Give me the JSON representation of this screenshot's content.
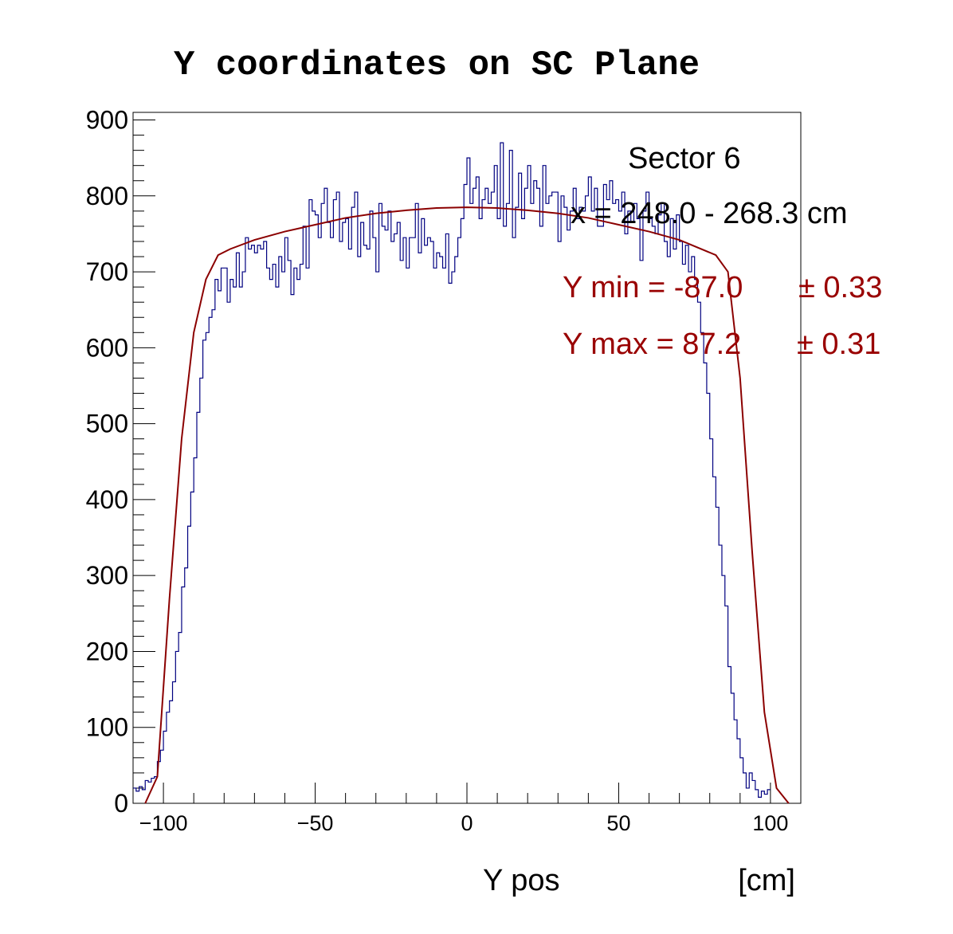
{
  "chart_data": {
    "type": "line",
    "title": "Y coordinates on SC Plane",
    "xlabel": "Y pos",
    "xunit": "[cm]",
    "ylabel": "",
    "xlim": [
      -110,
      110
    ],
    "ylim": [
      0,
      910
    ],
    "x_ticks": [
      -100,
      -50,
      0,
      50,
      100
    ],
    "x_tick_labels": [
      "−100",
      "−50",
      "0",
      "50",
      "100"
    ],
    "y_ticks": [
      0,
      100,
      200,
      300,
      400,
      500,
      600,
      700,
      800,
      900
    ],
    "y_tick_labels": [
      "0",
      "100",
      "200",
      "300",
      "400",
      "500",
      "600",
      "700",
      "800",
      "900"
    ],
    "grid": false,
    "colors": {
      "histogram": "#000080",
      "fit": "#8b0000",
      "annotation_red": "#990000",
      "text": "#000000"
    },
    "annotations": {
      "sector": "Sector 6",
      "x_range": "x = 248.0 - 268.3 cm",
      "ymin_label": "Y min = -87.0",
      "ymin_err": "± 0.33",
      "ymax_label": "Y max = 87.2",
      "ymax_err": "± 0.31"
    },
    "series": [
      {
        "type": "histogram",
        "bin_edges_start": -110,
        "bin_width": 1,
        "values": [
          20,
          16,
          22,
          18,
          30,
          28,
          33,
          35,
          55,
          70,
          95,
          120,
          135,
          160,
          200,
          225,
          285,
          310,
          365,
          410,
          455,
          515,
          560,
          610,
          620,
          640,
          650,
          690,
          675,
          705,
          705,
          660,
          690,
          680,
          725,
          680,
          700,
          745,
          730,
          735,
          725,
          735,
          730,
          740,
          705,
          690,
          710,
          680,
          720,
          700,
          745,
          715,
          670,
          705,
          690,
          710,
          760,
          705,
          795,
          780,
          775,
          745,
          790,
          810,
          765,
          745,
          795,
          805,
          740,
          765,
          770,
          730,
          785,
          805,
          720,
          765,
          735,
          730,
          780,
          745,
          700,
          790,
          760,
          755,
          780,
          740,
          750,
          765,
          715,
          745,
          705,
          745,
          745,
          790,
          725,
          770,
          735,
          745,
          740,
          705,
          725,
          720,
          705,
          750,
          685,
          700,
          720,
          745,
          770,
          815,
          850,
          790,
          810,
          825,
          770,
          795,
          810,
          790,
          805,
          840,
          770,
          870,
          760,
          790,
          860,
          745,
          785,
          830,
          770,
          810,
          840,
          790,
          820,
          810,
          760,
          840,
          790,
          800,
          805,
          805,
          740,
          800,
          785,
          755,
          780,
          810,
          770,
          785,
          780,
          800,
          825,
          780,
          810,
          760,
          760,
          815,
          795,
          820,
          790,
          795,
          780,
          805,
          750,
          780,
          765,
          790,
          770,
          715,
          780,
          805,
          770,
          760,
          750,
          775,
          790,
          740,
          720,
          770,
          730,
          775,
          740,
          710,
          735,
          700,
          720,
          690,
          660,
          620,
          580,
          540,
          480,
          430,
          390,
          340,
          300,
          260,
          180,
          145,
          110,
          85,
          60,
          40,
          20,
          40,
          30,
          18,
          8,
          16,
          12,
          18
        ]
      },
      {
        "type": "fit",
        "x": [
          -106,
          -102,
          -98,
          -94,
          -90,
          -86,
          -82,
          -78,
          -70,
          -60,
          -50,
          -40,
          -30,
          -20,
          -10,
          0,
          10,
          20,
          30,
          40,
          50,
          60,
          70,
          82,
          86,
          90,
          94,
          98,
          102,
          106
        ],
        "y": [
          0,
          35,
          270,
          480,
          620,
          690,
          722,
          730,
          742,
          753,
          762,
          771,
          777,
          781,
          784,
          785,
          784,
          781,
          777,
          771,
          762,
          753,
          742,
          722,
          700,
          560,
          330,
          120,
          20,
          0
        ]
      }
    ]
  }
}
